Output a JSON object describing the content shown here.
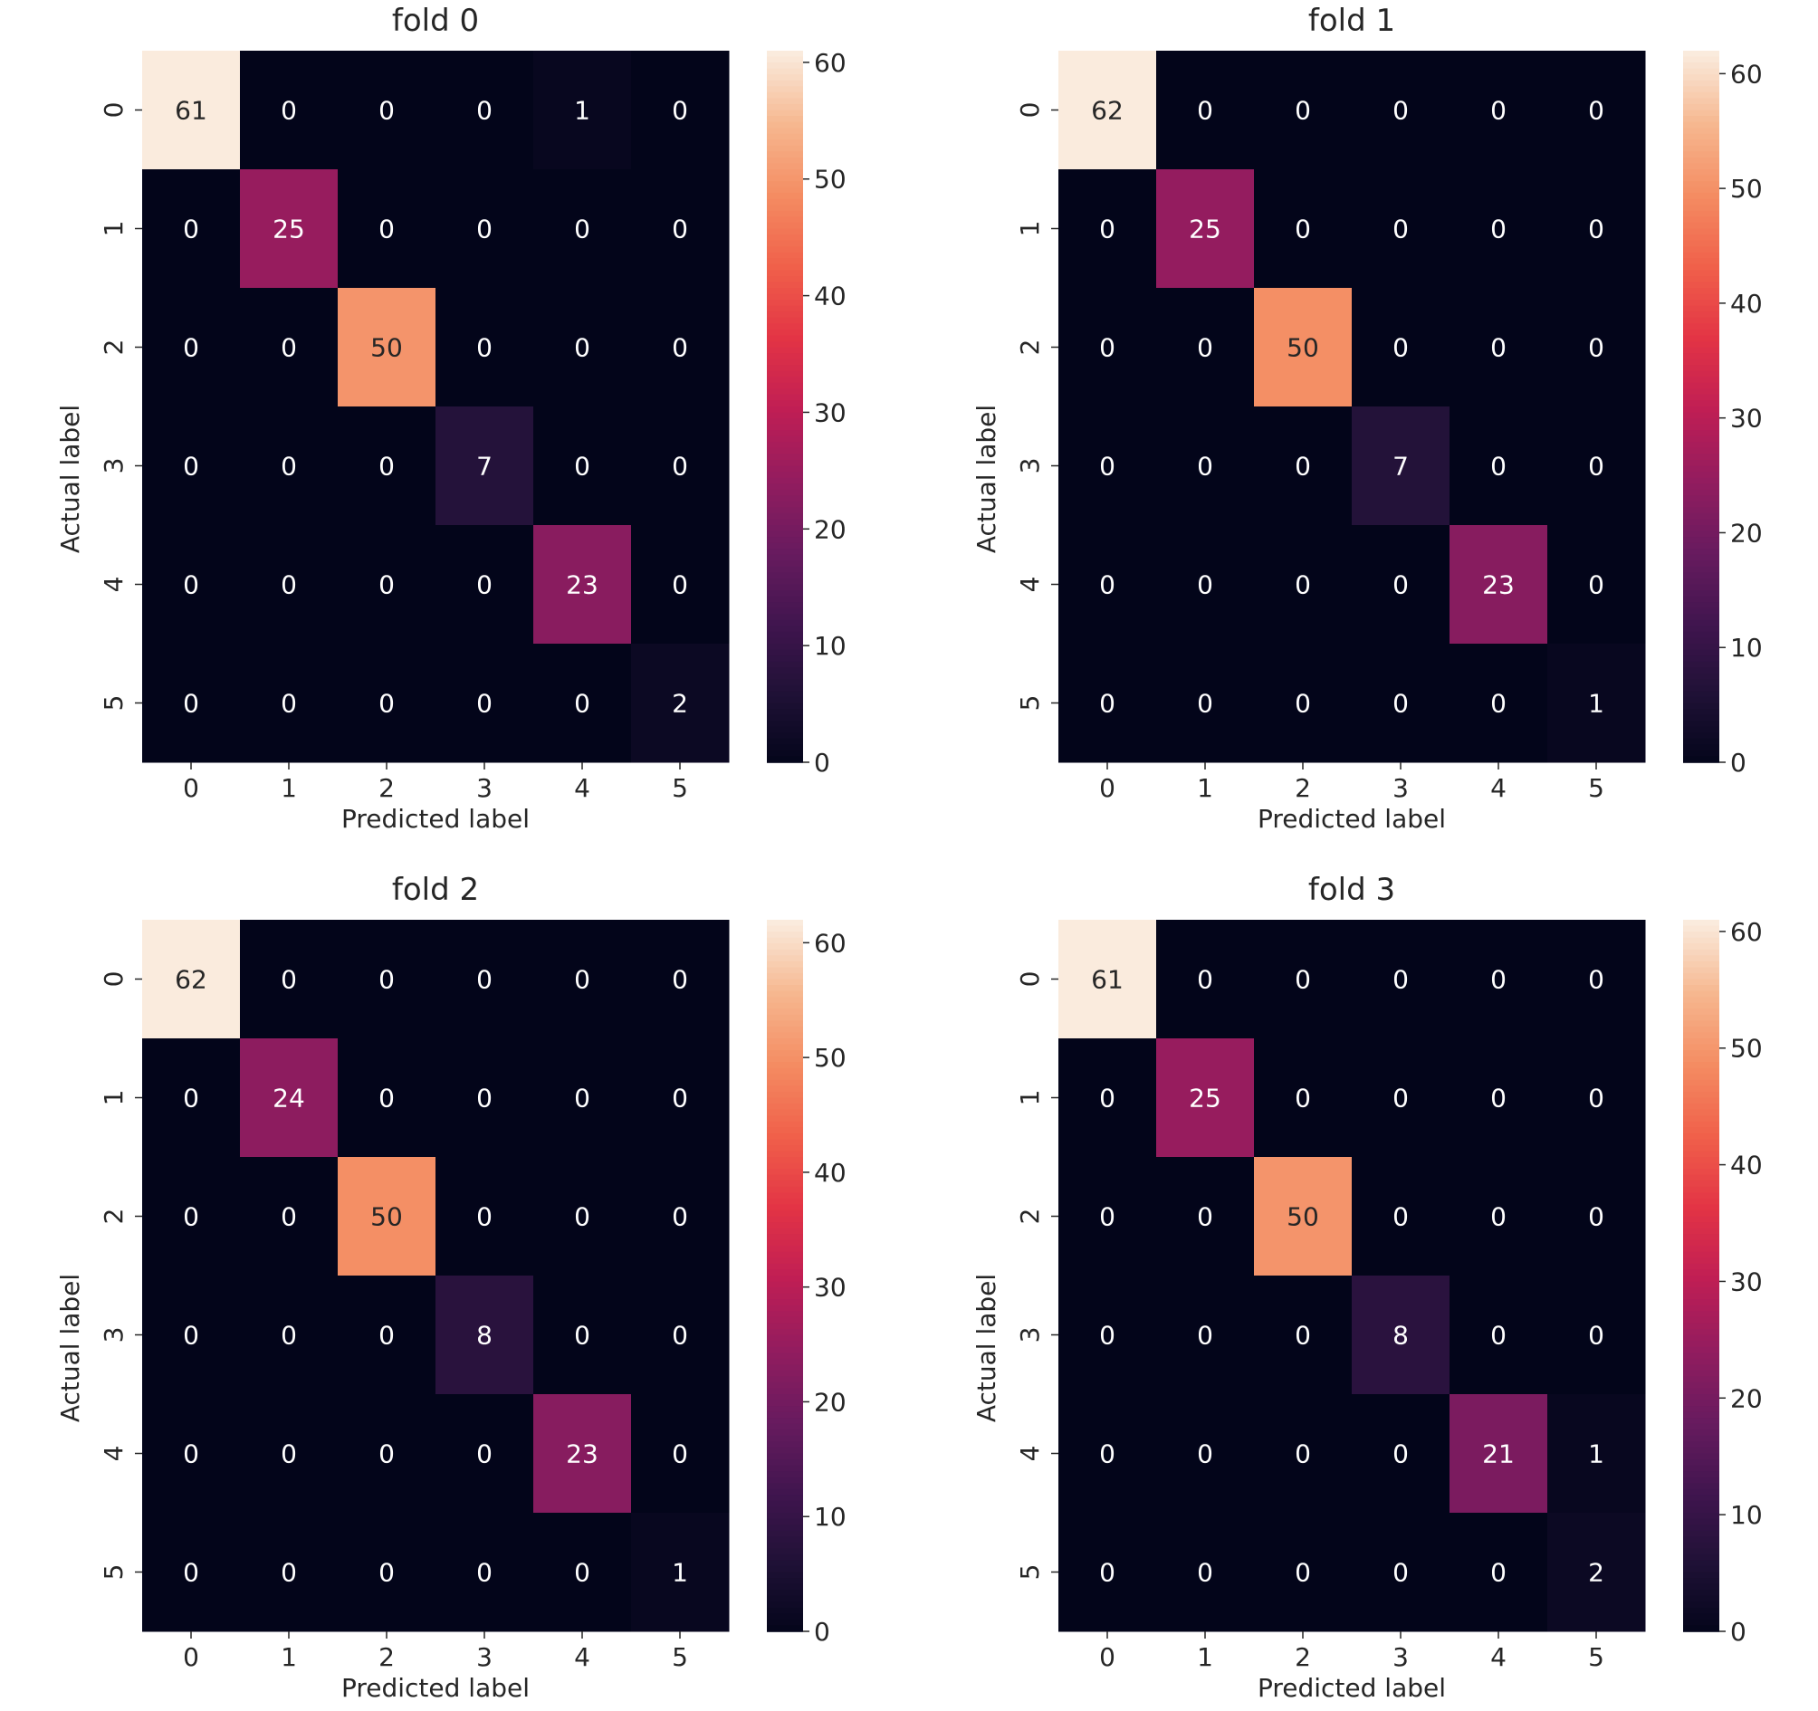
{
  "chart_data": [
    {
      "type": "heatmap",
      "title": "fold 0",
      "xlabel": "Predicted label",
      "ylabel": "Actual label",
      "x_ticks": [
        "0",
        "1",
        "2",
        "3",
        "4",
        "5"
      ],
      "y_ticks": [
        "0",
        "1",
        "2",
        "3",
        "4",
        "5"
      ],
      "matrix": [
        [
          61,
          0,
          0,
          0,
          1,
          0
        ],
        [
          0,
          25,
          0,
          0,
          0,
          0
        ],
        [
          0,
          0,
          50,
          0,
          0,
          0
        ],
        [
          0,
          0,
          0,
          7,
          0,
          0
        ],
        [
          0,
          0,
          0,
          0,
          23,
          0
        ],
        [
          0,
          0,
          0,
          0,
          0,
          2
        ]
      ],
      "colorbar": {
        "range": [
          0,
          61
        ],
        "ticks": [
          0,
          10,
          20,
          30,
          40,
          50,
          60
        ]
      }
    },
    {
      "type": "heatmap",
      "title": "fold 1",
      "xlabel": "Predicted label",
      "ylabel": "Actual label",
      "x_ticks": [
        "0",
        "1",
        "2",
        "3",
        "4",
        "5"
      ],
      "y_ticks": [
        "0",
        "1",
        "2",
        "3",
        "4",
        "5"
      ],
      "matrix": [
        [
          62,
          0,
          0,
          0,
          0,
          0
        ],
        [
          0,
          25,
          0,
          0,
          0,
          0
        ],
        [
          0,
          0,
          50,
          0,
          0,
          0
        ],
        [
          0,
          0,
          0,
          7,
          0,
          0
        ],
        [
          0,
          0,
          0,
          0,
          23,
          0
        ],
        [
          0,
          0,
          0,
          0,
          0,
          1
        ]
      ],
      "colorbar": {
        "range": [
          0,
          62
        ],
        "ticks": [
          0,
          10,
          20,
          30,
          40,
          50,
          60
        ]
      }
    },
    {
      "type": "heatmap",
      "title": "fold 2",
      "xlabel": "Predicted label",
      "ylabel": "Actual label",
      "x_ticks": [
        "0",
        "1",
        "2",
        "3",
        "4",
        "5"
      ],
      "y_ticks": [
        "0",
        "1",
        "2",
        "3",
        "4",
        "5"
      ],
      "matrix": [
        [
          62,
          0,
          0,
          0,
          0,
          0
        ],
        [
          0,
          24,
          0,
          0,
          0,
          0
        ],
        [
          0,
          0,
          50,
          0,
          0,
          0
        ],
        [
          0,
          0,
          0,
          8,
          0,
          0
        ],
        [
          0,
          0,
          0,
          0,
          23,
          0
        ],
        [
          0,
          0,
          0,
          0,
          0,
          1
        ]
      ],
      "colorbar": {
        "range": [
          0,
          62
        ],
        "ticks": [
          0,
          10,
          20,
          30,
          40,
          50,
          60
        ]
      }
    },
    {
      "type": "heatmap",
      "title": "fold 3",
      "xlabel": "Predicted label",
      "ylabel": "Actual label",
      "x_ticks": [
        "0",
        "1",
        "2",
        "3",
        "4",
        "5"
      ],
      "y_ticks": [
        "0",
        "1",
        "2",
        "3",
        "4",
        "5"
      ],
      "matrix": [
        [
          61,
          0,
          0,
          0,
          0,
          0
        ],
        [
          0,
          25,
          0,
          0,
          0,
          0
        ],
        [
          0,
          0,
          50,
          0,
          0,
          0
        ],
        [
          0,
          0,
          0,
          8,
          0,
          0
        ],
        [
          0,
          0,
          0,
          0,
          21,
          1
        ],
        [
          0,
          0,
          0,
          0,
          0,
          2
        ]
      ],
      "colorbar": {
        "range": [
          0,
          61
        ],
        "ticks": [
          0,
          10,
          20,
          30,
          40,
          50,
          60
        ]
      }
    }
  ]
}
